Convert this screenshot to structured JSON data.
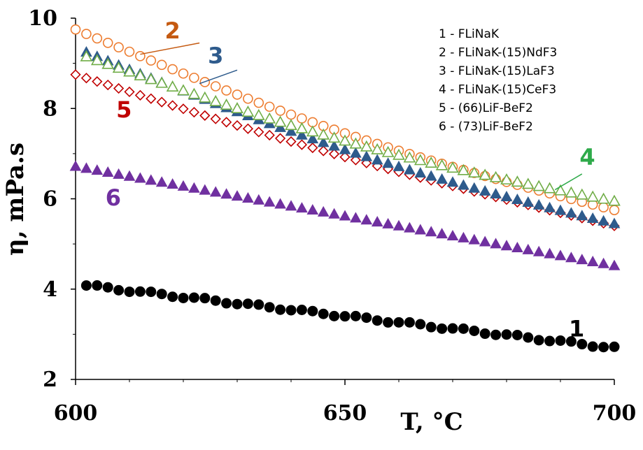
{
  "chart_data": {
    "type": "scatter",
    "title": "",
    "xlabel": "T, °C",
    "ylabel": "η, mPa.s",
    "xlim": [
      600,
      700
    ],
    "ylim": [
      2,
      10
    ],
    "xticks": [
      600,
      650,
      700
    ],
    "yticks": [
      2,
      4,
      6,
      8,
      10
    ],
    "x_tick_labels": [
      "600",
      "650",
      "700"
    ],
    "y_tick_labels": [
      "2",
      "4",
      "6",
      "8",
      "10"
    ],
    "grid": false,
    "legend_position": "top-right",
    "legend": [
      "1 - FLiNaK",
      "2 - FLiNaK-(15)NdF3",
      "3 - FLiNaK-(15)LaF3",
      "4 - FLiNaK-(15)CeF3",
      "5 - (66)LiF-BeF2",
      "6 - (73)LiF-BeF2"
    ],
    "series": [
      {
        "name": "1",
        "marker": "filled-circle",
        "color": "#000000",
        "x_start": 602,
        "x_end": 700,
        "x_step": 2,
        "y_start": 4.08,
        "y_end": 2.7
      },
      {
        "name": "2",
        "marker": "open-circle",
        "color": "#ED7D31",
        "x_start": 600,
        "x_end": 700,
        "x_step": 2,
        "y_start": 9.75,
        "y_end": 5.75
      },
      {
        "name": "3",
        "marker": "filled-triangle",
        "color": "#2E5B8C",
        "x_start": 602,
        "x_end": 700,
        "x_step": 2,
        "y_start": 9.25,
        "y_end": 5.45
      },
      {
        "name": "4",
        "marker": "open-triangle",
        "color": "#70AD47",
        "x_start": 602,
        "x_end": 700,
        "x_step": 2,
        "y_start": 9.15,
        "y_end": 5.95
      },
      {
        "name": "5",
        "marker": "open-diamond",
        "color": "#C00000",
        "x_start": 600,
        "x_end": 700,
        "x_step": 2,
        "y_start": 8.75,
        "y_end": 5.4
      },
      {
        "name": "6",
        "marker": "filled-triangle",
        "color": "#7030A0",
        "x_start": 600,
        "x_end": 700,
        "x_step": 2,
        "y_start": 6.72,
        "y_end": 4.52
      }
    ],
    "series_labels": [
      {
        "text": "1",
        "color": "#000000",
        "x": 693,
        "y": 2.95
      },
      {
        "text": "2",
        "color": "#C55A11",
        "x": 618,
        "y": 9.55
      },
      {
        "text": "3",
        "color": "#2E5B8C",
        "x": 626,
        "y": 9.0
      },
      {
        "text": "4",
        "color": "#2EAA4A",
        "x": 695,
        "y": 6.75
      },
      {
        "text": "5",
        "color": "#C00000",
        "x": 609,
        "y": 7.8
      },
      {
        "text": "6",
        "color": "#7030A0",
        "x": 607,
        "y": 5.85
      }
    ]
  }
}
